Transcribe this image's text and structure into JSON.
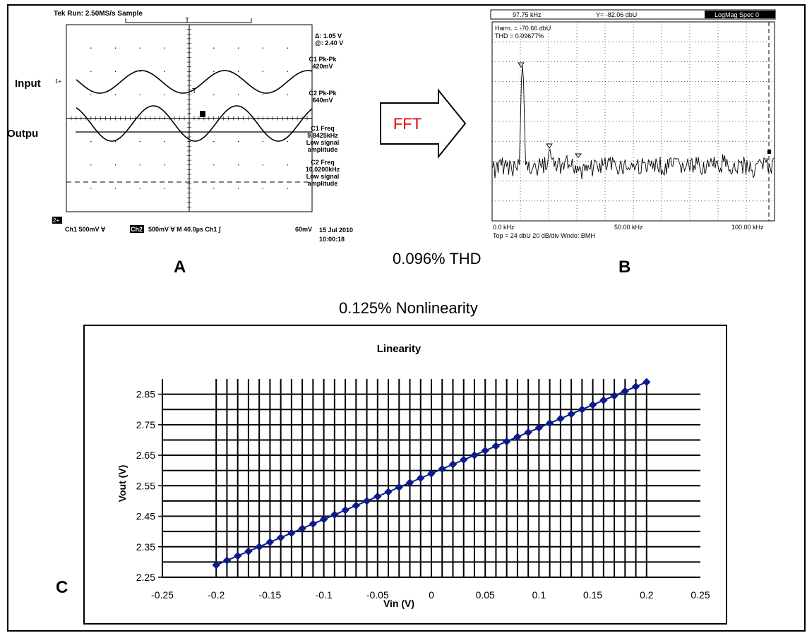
{
  "labels": {
    "input": "Input",
    "output": "Outpu",
    "panel_a": "A",
    "panel_b": "B",
    "panel_c": "C",
    "thd_caption": "0.096% THD",
    "nonlinearity_caption": "0.125% Nonlinearity",
    "fft_arrow": "FFT"
  },
  "colors": {
    "series": "#0b1a8a",
    "fft_text": "#e60000"
  },
  "scope": {
    "status": "Tek Run: 2.50MS/s    Sample",
    "trigger_mark": "T",
    "ch1_marker": "1+",
    "ch2_marker": "2+",
    "cursor_text": [
      "Δ: 1.05 V",
      "@: 2.40 V"
    ],
    "meas": [
      [
        "C1 Pk-Pk",
        "420mV"
      ],
      [
        "C2 Pk-Pk",
        "640mV"
      ],
      [
        "C1 Freq",
        "9.8425kHz",
        "Low signal",
        "amplitude"
      ],
      [
        "C2 Freq",
        "10.0200kHz",
        "Low signal",
        "amplitude"
      ]
    ],
    "footer": {
      "ch1": "Ch1   500mV  ∀",
      "ch2": "Ch2",
      "rest": "500mV  ∀ M 40.0µs  Ch1  ∫",
      "level": "60mV",
      "date": "15 Jul 2010",
      "time": "10:00:18"
    }
  },
  "fft": {
    "header_freq": "97.75 kHz",
    "header_y": "Y= -82.06  dbU",
    "header_mode": "LogMag Spec  0",
    "harm": "Harm. = -70.66 dbU",
    "thd": "THD = 0.09677%",
    "x_ticks": [
      "0.0 kHz",
      "50.00 kHz",
      "100.00 kHz"
    ],
    "footer": "Top = 24 dbU   20 dB/div    Wndo:  BMH"
  },
  "chart_data": {
    "type": "scatter",
    "title": "Linearity",
    "xlabel": "Vin (V)",
    "ylabel": "Vout (V)",
    "xlim": [
      -0.25,
      0.25
    ],
    "ylim": [
      2.25,
      2.9
    ],
    "x_ticks": [
      "-0.25",
      "-0.2",
      "-0.15",
      "-0.1",
      "-0.05",
      "0",
      "0.05",
      "0.1",
      "0.15",
      "0.2",
      "0.25"
    ],
    "y_ticks": [
      "2.25",
      "2.35",
      "2.45",
      "2.55",
      "2.65",
      "2.75",
      "2.85"
    ],
    "grid": "vertical every 0.01 V, horizontal every 0.05 V",
    "series": [
      {
        "x": [
          -0.2,
          -0.19,
          -0.18,
          -0.17,
          -0.16,
          -0.15,
          -0.14,
          -0.13,
          -0.12,
          -0.11,
          -0.1,
          -0.09,
          -0.08,
          -0.07,
          -0.06,
          -0.05,
          -0.04,
          -0.03,
          -0.02,
          -0.01,
          0,
          0.01,
          0.02,
          0.03,
          0.04,
          0.05,
          0.06,
          0.07,
          0.08,
          0.09,
          0.1,
          0.11,
          0.12,
          0.13,
          0.14,
          0.15,
          0.16,
          0.17,
          0.18,
          0.19,
          0.2
        ],
        "y": [
          2.29,
          2.305,
          2.32,
          2.335,
          2.35,
          2.365,
          2.38,
          2.395,
          2.41,
          2.425,
          2.44,
          2.455,
          2.47,
          2.485,
          2.5,
          2.515,
          2.53,
          2.545,
          2.56,
          2.575,
          2.59,
          2.605,
          2.62,
          2.635,
          2.65,
          2.665,
          2.68,
          2.695,
          2.71,
          2.725,
          2.74,
          2.755,
          2.77,
          2.785,
          2.8,
          2.815,
          2.83,
          2.845,
          2.86,
          2.875,
          2.89
        ]
      }
    ]
  }
}
